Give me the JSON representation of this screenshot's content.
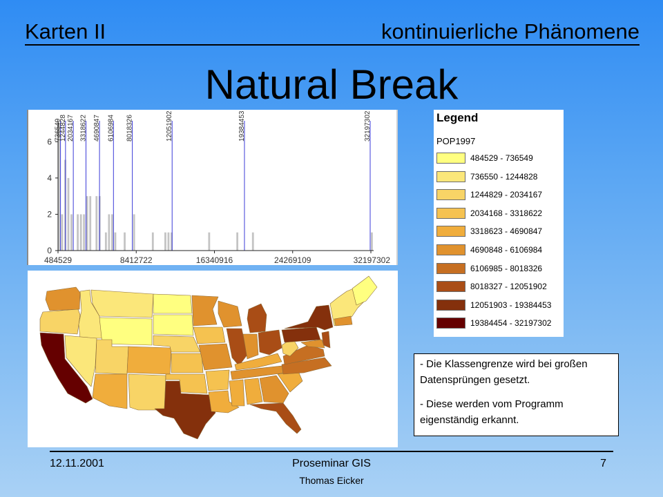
{
  "header": {
    "left": "Karten II",
    "right": "kontinuierliche Phänomene"
  },
  "title": "Natural Break",
  "chart_data": {
    "type": "bar",
    "title": "",
    "xlabel": "",
    "ylabel": "",
    "xlim": [
      484529,
      32197302
    ],
    "ylim": [
      0,
      7
    ],
    "x_tick_labels": [
      "484529",
      "8412722",
      "16340916",
      "24269109",
      "32197302"
    ],
    "y_tick_labels": [
      "0",
      "2",
      "4",
      "6"
    ],
    "break_labels": [
      "736549",
      "1244828",
      "2034167",
      "3318622",
      "4690847",
      "6106984",
      "8018326",
      "12051902",
      "19384453",
      "32197302"
    ],
    "break_values": [
      736549,
      1244828,
      2034167,
      3318622,
      4690847,
      6106984,
      8018326,
      12051902,
      19384453,
      32197302
    ],
    "bin_width": 317128,
    "bins": [
      {
        "x": 484529,
        "count": 7
      },
      {
        "x": 801657,
        "count": 2
      },
      {
        "x": 1118785,
        "count": 5
      },
      {
        "x": 1435913,
        "count": 4
      },
      {
        "x": 1753041,
        "count": 2
      },
      {
        "x": 2387297,
        "count": 2
      },
      {
        "x": 2704425,
        "count": 2
      },
      {
        "x": 3021553,
        "count": 2
      },
      {
        "x": 3338681,
        "count": 3
      },
      {
        "x": 3655809,
        "count": 3
      },
      {
        "x": 4290065,
        "count": 3
      },
      {
        "x": 4607193,
        "count": 3
      },
      {
        "x": 5241449,
        "count": 1
      },
      {
        "x": 5558577,
        "count": 2
      },
      {
        "x": 5875705,
        "count": 2
      },
      {
        "x": 6192833,
        "count": 1
      },
      {
        "x": 7144217,
        "count": 1
      },
      {
        "x": 8095601,
        "count": 2
      },
      {
        "x": 9998369,
        "count": 1
      },
      {
        "x": 11266881,
        "count": 1
      },
      {
        "x": 11584009,
        "count": 1
      },
      {
        "x": 11901137,
        "count": 1
      },
      {
        "x": 15706673,
        "count": 1
      },
      {
        "x": 18560825,
        "count": 1
      },
      {
        "x": 20146465,
        "count": 1
      },
      {
        "x": 32197302,
        "count": 1
      }
    ],
    "colors": {
      "bar": "#c4c4c4",
      "break_line": "#3a3ad8",
      "axis": "#222222"
    }
  },
  "legend": {
    "title": "Legend",
    "field": "POP1997",
    "items": [
      {
        "label": "484529 - 736549",
        "color": "#ffff80"
      },
      {
        "label": "736550 - 1244828",
        "color": "#fbe77a"
      },
      {
        "label": "1244829 - 2034167",
        "color": "#f8d466"
      },
      {
        "label": "2034168 - 3318622",
        "color": "#f5c250"
      },
      {
        "label": "3318623 - 4690847",
        "color": "#f0ad3c"
      },
      {
        "label": "4690848 - 6106984",
        "color": "#e0922e"
      },
      {
        "label": "6106985 - 8018326",
        "color": "#c66f22"
      },
      {
        "label": "8018327 - 12051902",
        "color": "#a94d16"
      },
      {
        "label": "12051903 - 19384453",
        "color": "#84300c"
      },
      {
        "label": "19384454 - 32197302",
        "color": "#650000"
      }
    ]
  },
  "note": {
    "line1": " - Die Klassengrenze wird bei großen Datensprüngen gesetzt.",
    "line2": "- Diese werden vom Programm eigenständig erkannt."
  },
  "footer": {
    "date": "12.11.2001",
    "center": "Proseminar GIS",
    "author": "Thomas Eicker",
    "page": "7"
  }
}
